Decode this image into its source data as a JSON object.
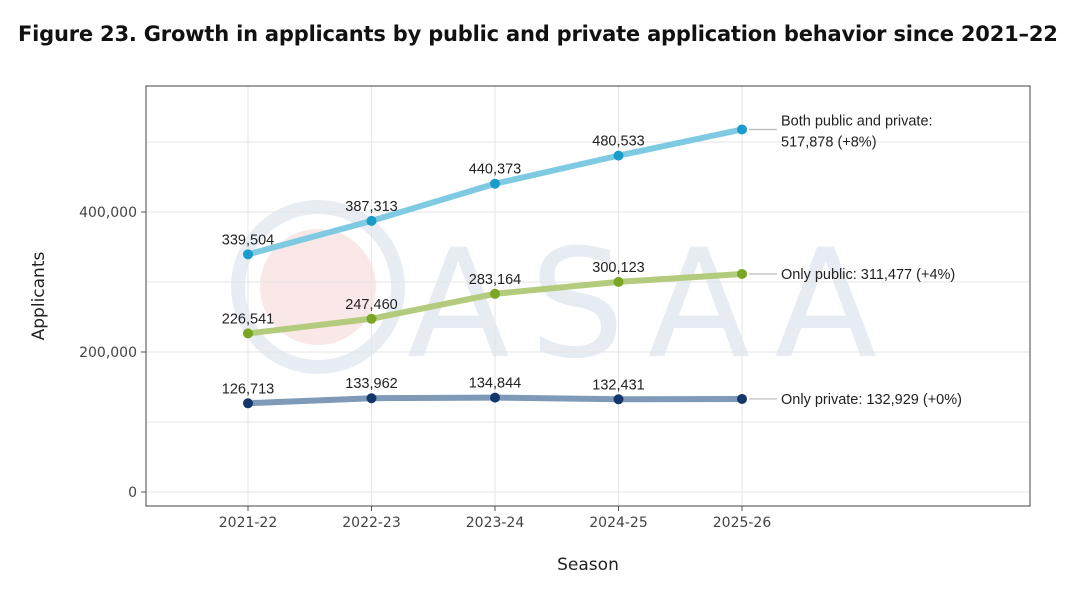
{
  "title": "Figure 23. Growth in applicants by public and private application behavior since 2021–22",
  "watermark": "ASAA",
  "colors": {
    "both": "#1a9bc9",
    "both_line": "#7ecae2",
    "public": "#7aa624",
    "public_line": "#b3cb7c",
    "private": "#13366b",
    "private_line": "#7f9ab8",
    "grid": "#e5e5e5",
    "axis": "#555555",
    "text": "#222222"
  },
  "chart_data": {
    "type": "line",
    "title": "Figure 23. Growth in applicants by public and private application behavior since 2021–22",
    "xlabel": "Season",
    "ylabel": "Applicants",
    "categories": [
      "2021-22",
      "2022-23",
      "2023-24",
      "2024-25",
      "2025-26"
    ],
    "ylim": [
      -20000,
      580000
    ],
    "yticks": [
      0,
      200000,
      400000
    ],
    "ytick_labels": [
      "0",
      "200,000",
      "400,000"
    ],
    "grid": true,
    "series": [
      {
        "key": "both",
        "name": "Both public and private",
        "values": [
          339504,
          387313,
          440373,
          480533,
          517878
        ],
        "point_labels": [
          "339,504",
          "387,313",
          "440,373",
          "480,533"
        ],
        "end_label_lines": [
          "Both public and private:",
          "517,878 (+8%)"
        ]
      },
      {
        "key": "public",
        "name": "Only public",
        "values": [
          226541,
          247460,
          283164,
          300123,
          311477
        ],
        "point_labels": [
          "226,541",
          "247,460",
          "283,164",
          "300,123"
        ],
        "end_label_lines": [
          "Only public: 311,477 (+4%)"
        ]
      },
      {
        "key": "private",
        "name": "Only private",
        "values": [
          126713,
          133962,
          134844,
          132431,
          132929
        ],
        "point_labels": [
          "126,713",
          "133,962",
          "134,844",
          "132,431"
        ],
        "end_label_lines": [
          "Only private: 132,929 (+0%)"
        ]
      }
    ]
  }
}
